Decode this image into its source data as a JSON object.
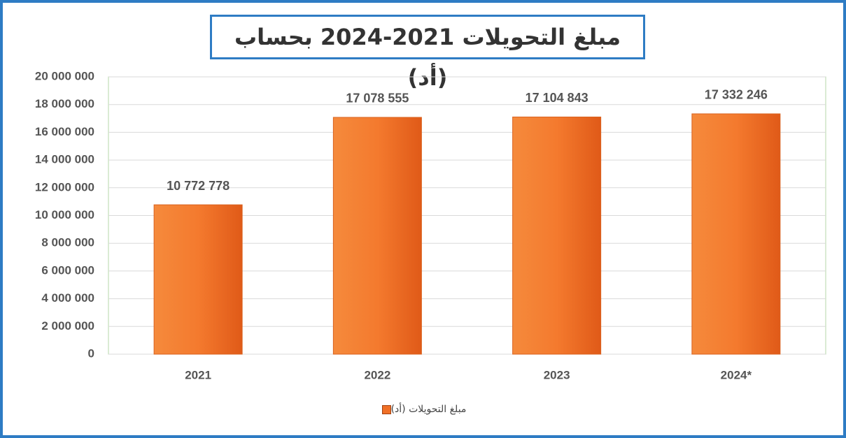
{
  "chart_data": {
    "type": "bar",
    "title": "مبلغ التحويلات 2021-2024 بحساب (أد)",
    "categories": [
      "2021",
      "2022",
      "2023",
      "2024*"
    ],
    "series": [
      {
        "name": "مبلغ التحويلات (أد)",
        "color": "#f07026",
        "values": [
          10772778,
          17078555,
          17104843,
          17332246
        ],
        "value_labels": [
          "10 772 778",
          "17 078 555",
          "17 104 843",
          "17 332 246"
        ]
      }
    ],
    "ylim": [
      0,
      20000000
    ],
    "yticks": [
      0,
      {
        "value": 2000000,
        "label": "2 000 000"
      },
      {
        "value": 4000000,
        "label": "4 000 000"
      },
      {
        "value": 6000000,
        "label": "6 000 000"
      },
      {
        "value": 8000000,
        "label": "8 000 000"
      },
      {
        "value": 10000000,
        "label": "10 000 000"
      },
      {
        "value": 12000000,
        "label": "12 000 000"
      },
      {
        "value": 14000000,
        "label": "14 000 000"
      },
      {
        "value": 16000000,
        "label": "16 000 000"
      },
      {
        "value": 18000000,
        "label": "18 000 000"
      },
      {
        "value": 20000000,
        "label": "20 000 000"
      }
    ],
    "grid": true,
    "legend": "bottom"
  }
}
